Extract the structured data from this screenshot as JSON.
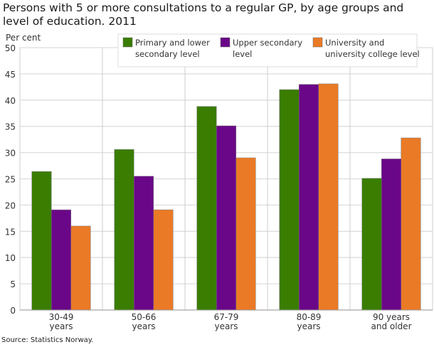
{
  "chart_data": {
    "type": "bar",
    "title": "Persons with 5 or more consultations to a regular GP, by age groups and level of education. 2011",
    "ylabel": "Per cent",
    "ylim": [
      0,
      50
    ],
    "yticks": [
      0,
      5,
      10,
      15,
      20,
      25,
      30,
      35,
      40,
      45,
      50
    ],
    "grid": true,
    "legend": "top-right",
    "categories": [
      [
        "30-49",
        "years"
      ],
      [
        "50-66",
        "years"
      ],
      [
        "67-79",
        "years"
      ],
      [
        "80-89",
        "years"
      ],
      [
        "90 years",
        "and older"
      ]
    ],
    "series": [
      {
        "name": [
          "Primary and lower",
          "secondary level"
        ],
        "color": "#3a7d00",
        "values": [
          26.4,
          30.6,
          38.8,
          42.0,
          25.1
        ]
      },
      {
        "name": [
          "Upper secondary",
          "level"
        ],
        "color": "#6a0788",
        "values": [
          19.1,
          25.5,
          35.1,
          43.0,
          28.8
        ]
      },
      {
        "name": [
          "University and",
          "university college level"
        ],
        "color": "#ea7a26",
        "values": [
          16.0,
          19.1,
          29.0,
          43.1,
          32.8
        ]
      }
    ],
    "source": "Source: Statistics Norway."
  }
}
